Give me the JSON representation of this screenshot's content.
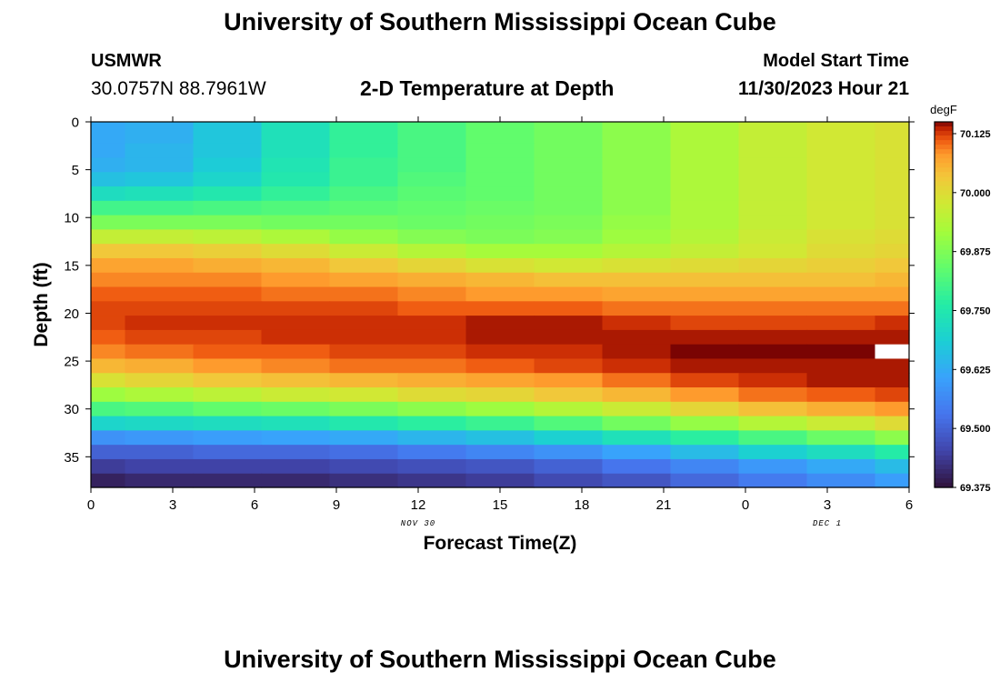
{
  "header": {
    "title": "University of Southern Mississippi Ocean Cube",
    "station": "USMWR",
    "coordinates": "30.0757N  88.7961W",
    "subtitle": "2-D Temperature at Depth",
    "model_start_label": "Model Start Time",
    "model_start_value": "11/30/2023 Hour 21"
  },
  "footer": {
    "title": "University of Southern Mississippi Ocean Cube"
  },
  "chart_data": {
    "type": "heatmap",
    "title": "2-D Temperature at Depth",
    "xlabel": "Forecast Time(Z)",
    "ylabel": "Depth (ft)",
    "x_tick_labels": [
      "0",
      "3",
      "6",
      "9",
      "12",
      "15",
      "18",
      "21",
      "0",
      "3",
      "6"
    ],
    "x_date_labels": [
      {
        "label": "NOV 30",
        "at_hour": 12
      },
      {
        "label": "DEC 1",
        "at_hour": 27
      }
    ],
    "xlim_hours": [
      0,
      30
    ],
    "ylim": [
      0,
      38.2
    ],
    "y_reversed": true,
    "y_ticks": [
      0,
      5,
      10,
      15,
      20,
      25,
      30,
      35
    ],
    "colorbar": {
      "unit": "degF",
      "min": 69.375,
      "max": 70.15,
      "tick_values": [
        70.125,
        70.0,
        69.875,
        69.75,
        69.625,
        69.5,
        69.375
      ],
      "tick_labels": [
        "70.125",
        "70.000",
        "69.875",
        "69.750",
        "69.625",
        "69.500",
        "69.375"
      ]
    },
    "column_hours": [
      0,
      2.5,
      5,
      7.5,
      10,
      12.5,
      15,
      17.5,
      20,
      22.5,
      25,
      27.5,
      30
    ],
    "depths_ft": [
      0,
      1.5,
      3,
      4.5,
      6,
      7.5,
      9,
      10.5,
      12,
      13.5,
      15,
      16.5,
      18,
      19.5,
      21,
      22.5,
      24,
      25.5,
      27,
      28.5,
      30,
      31.5,
      33,
      34.5,
      36,
      37.5
    ],
    "temperature_degF": [
      [
        69.62,
        69.63,
        69.67,
        69.73,
        69.78,
        69.81,
        69.84,
        69.86,
        69.89,
        69.93,
        69.96,
        69.98,
        69.99
      ],
      [
        69.62,
        69.63,
        69.67,
        69.73,
        69.78,
        69.81,
        69.84,
        69.86,
        69.89,
        69.93,
        69.96,
        69.98,
        69.99
      ],
      [
        69.62,
        69.64,
        69.67,
        69.73,
        69.78,
        69.81,
        69.84,
        69.86,
        69.89,
        69.93,
        69.96,
        69.98,
        69.99
      ],
      [
        69.63,
        69.64,
        69.68,
        69.74,
        69.79,
        69.81,
        69.84,
        69.86,
        69.89,
        69.93,
        69.96,
        69.98,
        69.99
      ],
      [
        69.66,
        69.67,
        69.7,
        69.75,
        69.79,
        69.82,
        69.84,
        69.86,
        69.89,
        69.93,
        69.96,
        69.98,
        69.99
      ],
      [
        69.72,
        69.73,
        69.75,
        69.78,
        69.81,
        69.83,
        69.84,
        69.86,
        69.89,
        69.93,
        69.96,
        69.98,
        69.99
      ],
      [
        69.8,
        69.8,
        69.81,
        69.82,
        69.83,
        69.84,
        69.85,
        69.86,
        69.89,
        69.93,
        69.96,
        69.98,
        69.99
      ],
      [
        69.87,
        69.87,
        69.87,
        69.86,
        69.86,
        69.85,
        69.86,
        69.87,
        69.9,
        69.93,
        69.96,
        69.98,
        69.99
      ],
      [
        69.96,
        69.96,
        69.95,
        69.93,
        69.9,
        69.88,
        69.87,
        69.88,
        69.91,
        69.94,
        69.97,
        69.99,
        70.0
      ],
      [
        70.03,
        70.03,
        70.02,
        70.0,
        69.97,
        69.94,
        69.92,
        69.92,
        69.94,
        69.96,
        69.98,
        70.0,
        70.01
      ],
      [
        70.07,
        70.07,
        70.06,
        70.05,
        70.03,
        70.01,
        69.99,
        69.98,
        69.99,
        70.0,
        70.01,
        70.02,
        70.03
      ],
      [
        70.09,
        70.09,
        70.09,
        70.08,
        70.07,
        70.06,
        70.05,
        70.04,
        70.04,
        70.04,
        70.04,
        70.04,
        70.05
      ],
      [
        70.11,
        70.11,
        70.11,
        70.1,
        70.1,
        70.09,
        70.08,
        70.08,
        70.07,
        70.07,
        70.07,
        70.07,
        70.07
      ],
      [
        70.12,
        70.12,
        70.12,
        70.12,
        70.12,
        70.11,
        70.11,
        70.11,
        70.1,
        70.1,
        70.1,
        70.1,
        70.1
      ],
      [
        70.12,
        70.13,
        70.13,
        70.13,
        70.13,
        70.13,
        70.14,
        70.14,
        70.13,
        70.12,
        70.12,
        70.12,
        70.13
      ],
      [
        70.11,
        70.12,
        70.12,
        70.13,
        70.13,
        70.13,
        70.14,
        70.14,
        70.14,
        70.14,
        70.14,
        70.14,
        70.14
      ],
      [
        70.09,
        70.1,
        70.11,
        70.11,
        70.12,
        70.12,
        70.13,
        70.13,
        70.14,
        70.15,
        70.15,
        70.15,
        null
      ],
      [
        70.05,
        70.06,
        70.08,
        70.09,
        70.1,
        70.1,
        70.11,
        70.12,
        70.13,
        70.14,
        70.14,
        70.14,
        70.14
      ],
      [
        69.99,
        70.01,
        70.03,
        70.04,
        70.05,
        70.06,
        70.07,
        70.08,
        70.1,
        70.12,
        70.13,
        70.14,
        70.14
      ],
      [
        69.91,
        69.93,
        69.95,
        69.97,
        69.98,
        70.0,
        70.01,
        70.03,
        70.05,
        70.08,
        70.1,
        70.11,
        70.12
      ],
      [
        69.81,
        69.82,
        69.84,
        69.85,
        69.87,
        69.89,
        69.91,
        69.94,
        69.97,
        70.01,
        70.04,
        70.06,
        70.08
      ],
      [
        69.7,
        69.71,
        69.72,
        69.73,
        69.75,
        69.77,
        69.79,
        69.82,
        69.86,
        69.9,
        69.94,
        69.97,
        70.0
      ],
      [
        69.58,
        69.59,
        69.6,
        69.61,
        69.62,
        69.64,
        69.66,
        69.69,
        69.73,
        69.77,
        69.81,
        69.85,
        69.89
      ],
      [
        69.5,
        69.5,
        69.51,
        69.51,
        69.52,
        69.54,
        69.56,
        69.58,
        69.61,
        69.65,
        69.69,
        69.72,
        69.76
      ],
      [
        69.44,
        69.45,
        69.45,
        69.45,
        69.46,
        69.47,
        69.48,
        69.5,
        69.53,
        69.56,
        69.59,
        69.62,
        69.65
      ],
      [
        69.4,
        69.41,
        69.41,
        69.41,
        69.42,
        69.43,
        69.44,
        69.46,
        69.48,
        69.51,
        69.54,
        69.57,
        69.6
      ]
    ]
  },
  "colors": {
    "background": "#ffffff",
    "text": "#000000",
    "missing": "#ffffff"
  }
}
